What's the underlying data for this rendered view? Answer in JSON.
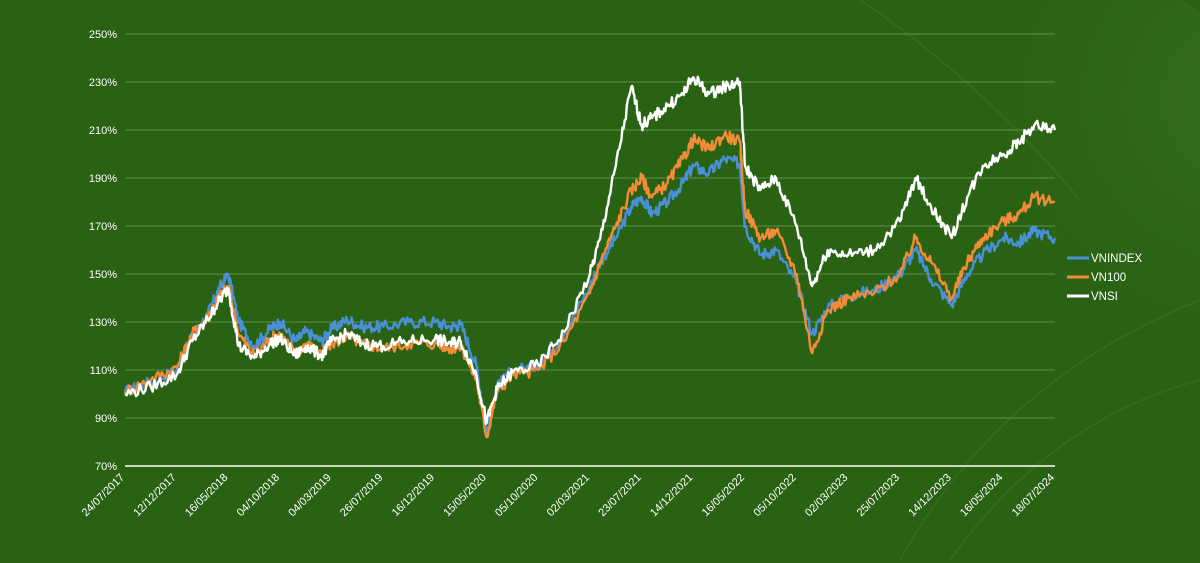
{
  "chart_data": {
    "type": "line",
    "title": "",
    "xlabel": "",
    "ylabel": "",
    "ylim": [
      70,
      250
    ],
    "y_ticks": [
      "250%",
      "230%",
      "210%",
      "190%",
      "170%",
      "150%",
      "130%",
      "110%",
      "90%",
      "70%"
    ],
    "y_tick_values": [
      250,
      230,
      210,
      190,
      170,
      150,
      130,
      110,
      90,
      70
    ],
    "x_ticks": [
      "24/07/2017",
      "12/12/2017",
      "16/05/2018",
      "04/10/2018",
      "04/03/2019",
      "26/07/2019",
      "16/12/2019",
      "15/05/2020",
      "05/10/2020",
      "02/03/2021",
      "23/07/2021",
      "14/12/2021",
      "16/05/2022",
      "05/10/2022",
      "02/03/2023",
      "25/07/2023",
      "14/12/2023",
      "16/05/2024",
      "18/07/2024"
    ],
    "x_tick_positions": [
      0,
      1,
      2,
      3,
      4,
      5,
      6,
      7,
      8,
      9,
      10,
      11,
      12,
      13,
      14,
      15,
      16,
      17,
      18
    ],
    "x_range": [
      0,
      18
    ],
    "grid": true,
    "legend": "right",
    "series": [
      {
        "name": "VNINDEX",
        "color": "#4a90d9",
        "x": [
          0,
          0.5,
          1,
          1.3,
          1.6,
          1.8,
          2.0,
          2.2,
          2.5,
          2.8,
          3.0,
          3.3,
          3.5,
          3.8,
          4.0,
          4.3,
          4.6,
          5.0,
          5.5,
          6.0,
          6.3,
          6.5,
          6.8,
          7.0,
          7.2,
          7.5,
          8.0,
          8.5,
          9.0,
          9.2,
          9.5,
          9.8,
          10.0,
          10.2,
          10.5,
          10.8,
          11.0,
          11.3,
          11.6,
          11.9,
          12.0,
          12.3,
          12.6,
          13.0,
          13.3,
          13.6,
          14.0,
          14.5,
          15.0,
          15.3,
          15.6,
          16.0,
          16.3,
          16.6,
          17.0,
          17.3,
          17.6,
          18.0
        ],
        "values": [
          101,
          105,
          110,
          124,
          133,
          143,
          150,
          130,
          120,
          127,
          130,
          122,
          126,
          122,
          127,
          131,
          128,
          128,
          130,
          130,
          128,
          129,
          112,
          84,
          103,
          110,
          112,
          125,
          145,
          155,
          165,
          178,
          182,
          175,
          180,
          188,
          195,
          192,
          198,
          196,
          170,
          158,
          160,
          146,
          125,
          136,
          141,
          143,
          150,
          160,
          148,
          137,
          150,
          158,
          165,
          163,
          168,
          165
        ]
      },
      {
        "name": "VN100",
        "color": "#f28c38",
        "x": [
          0,
          0.5,
          1,
          1.3,
          1.6,
          1.8,
          2.0,
          2.2,
          2.5,
          2.8,
          3.0,
          3.3,
          3.5,
          3.8,
          4.0,
          4.3,
          4.6,
          5.0,
          5.5,
          6.0,
          6.3,
          6.5,
          6.8,
          7.0,
          7.2,
          7.5,
          8.0,
          8.5,
          9.0,
          9.2,
          9.5,
          9.8,
          10.0,
          10.2,
          10.5,
          10.8,
          11.0,
          11.3,
          11.6,
          11.9,
          12.0,
          12.3,
          12.6,
          13.0,
          13.3,
          13.6,
          14.0,
          14.5,
          15.0,
          15.3,
          15.6,
          16.0,
          16.3,
          16.6,
          17.0,
          17.3,
          17.6,
          18.0
        ],
        "values": [
          101,
          106,
          111,
          125,
          132,
          140,
          145,
          125,
          116,
          123,
          125,
          117,
          121,
          117,
          121,
          124,
          121,
          119,
          121,
          121,
          119,
          120,
          106,
          82,
          101,
          108,
          110,
          122,
          142,
          155,
          170,
          185,
          190,
          182,
          188,
          198,
          206,
          202,
          208,
          205,
          177,
          165,
          168,
          150,
          117,
          135,
          140,
          142,
          150,
          165,
          155,
          140,
          155,
          165,
          172,
          175,
          182,
          180
        ]
      },
      {
        "name": "VNSI",
        "color": "#ffffff",
        "x": [
          0,
          0.5,
          1,
          1.3,
          1.6,
          1.8,
          2.0,
          2.2,
          2.5,
          2.8,
          3.0,
          3.3,
          3.5,
          3.8,
          4.0,
          4.3,
          4.6,
          5.0,
          5.5,
          6.0,
          6.3,
          6.5,
          6.8,
          7.0,
          7.2,
          7.5,
          8.0,
          8.5,
          9.0,
          9.2,
          9.5,
          9.8,
          10.0,
          10.2,
          10.5,
          10.8,
          11.0,
          11.3,
          11.6,
          11.9,
          12.0,
          12.3,
          12.6,
          13.0,
          13.3,
          13.6,
          14.0,
          14.5,
          15.0,
          15.3,
          15.6,
          16.0,
          16.3,
          16.6,
          17.0,
          17.3,
          17.6,
          18.0
        ],
        "values": [
          100,
          103,
          108,
          122,
          131,
          138,
          144,
          120,
          115,
          121,
          123,
          116,
          120,
          116,
          122,
          125,
          121,
          120,
          122,
          123,
          121,
          122,
          108,
          88,
          102,
          109,
          112,
          126,
          150,
          165,
          195,
          228,
          212,
          215,
          220,
          225,
          232,
          225,
          228,
          230,
          195,
          185,
          190,
          170,
          145,
          160,
          158,
          160,
          172,
          190,
          178,
          165,
          182,
          195,
          200,
          205,
          212,
          210
        ]
      }
    ]
  }
}
